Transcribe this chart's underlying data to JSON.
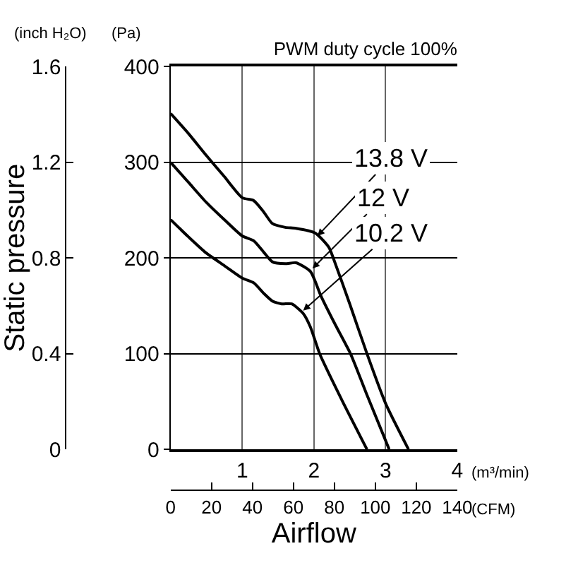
{
  "chart_data": {
    "type": "line",
    "title": "PWM duty cycle 100%",
    "xlabel": "Airflow",
    "y2label": "Static pressure",
    "xlim": [
      0,
      4
    ],
    "xticks": [
      1,
      2,
      3,
      4
    ],
    "ylim": [
      0,
      400
    ],
    "yticks": [
      0,
      100,
      200,
      300,
      400
    ],
    "x2lim": [
      0,
      140
    ],
    "x2ticks": [
      0,
      20,
      40,
      60,
      80,
      100,
      120,
      140
    ],
    "y2lim": [
      0,
      1.6
    ],
    "y2ticks": [
      0,
      0.4,
      0.8,
      1.2,
      1.6
    ],
    "grid": true,
    "marker": "none",
    "line_style": "solid",
    "series": [
      {
        "color": "#000000",
        "x": [
          0,
          0.25,
          0.5,
          0.75,
          1.0,
          1.16,
          1.3,
          1.42,
          1.6,
          1.75,
          2.02,
          2.21,
          2.27,
          2.5,
          2.74,
          3.0,
          3.32
        ],
        "values": [
          351,
          330,
          307,
          285,
          263,
          260,
          248,
          236,
          232,
          231,
          226,
          211,
          200,
          152,
          100,
          48,
          0
        ]
      },
      {
        "color": "#000000",
        "x": [
          0,
          0.25,
          0.5,
          0.75,
          1.0,
          1.16,
          1.3,
          1.42,
          1.6,
          1.75,
          1.95,
          2.1,
          2.3,
          2.51,
          2.75,
          3.05
        ],
        "values": [
          300,
          279,
          258,
          240,
          223,
          218,
          206,
          196,
          194,
          195,
          186,
          160,
          130,
          100,
          55,
          0
        ]
      },
      {
        "color": "#000000",
        "x": [
          0,
          0.25,
          0.5,
          0.75,
          1.0,
          1.16,
          1.3,
          1.42,
          1.55,
          1.69,
          1.85,
          1.95,
          2.08,
          2.4,
          2.74
        ],
        "values": [
          240,
          222,
          205,
          192,
          179,
          174,
          163,
          155,
          152,
          152,
          142,
          128,
          100,
          50,
          0
        ]
      }
    ],
    "annotations": [
      {
        "text": "13.8 V",
        "x": 2.05,
        "y": 223
      },
      {
        "text": "12 V",
        "x": 1.98,
        "y": 189
      },
      {
        "text": "10.2 V",
        "x": 1.85,
        "y": 145
      },
      "(m³/min)",
      "(CFM)",
      "(inch H₂O)",
      "(Pa)"
    ]
  }
}
